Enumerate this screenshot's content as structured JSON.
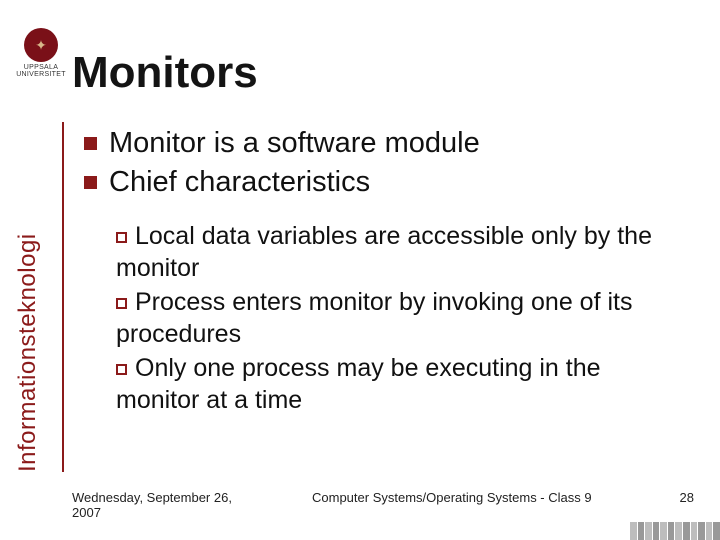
{
  "logo": {
    "uni_line1": "UPPSALA",
    "uni_line2": "UNIVERSITET",
    "circle_color": "#7a1018",
    "inner_glyph": "✦"
  },
  "title": "Monitors",
  "colors": {
    "accent": "#8b1a1a",
    "text": "#111111",
    "background": "#ffffff"
  },
  "sidebar_label": "Informationsteknologi",
  "bullets_l1": [
    {
      "text": "Monitor is a software module"
    },
    {
      "text": "Chief characteristics"
    }
  ],
  "bullets_l2": [
    {
      "text": "Local data variables are accessible only by the monitor"
    },
    {
      "text": "Process enters monitor by invoking one of its procedures"
    },
    {
      "text": "Only one process may be executing in the monitor at a time"
    }
  ],
  "footer": {
    "date": "Wednesday, September 26, 2007",
    "course": "Computer Systems/Operating Systems - Class 9",
    "page": "28"
  }
}
